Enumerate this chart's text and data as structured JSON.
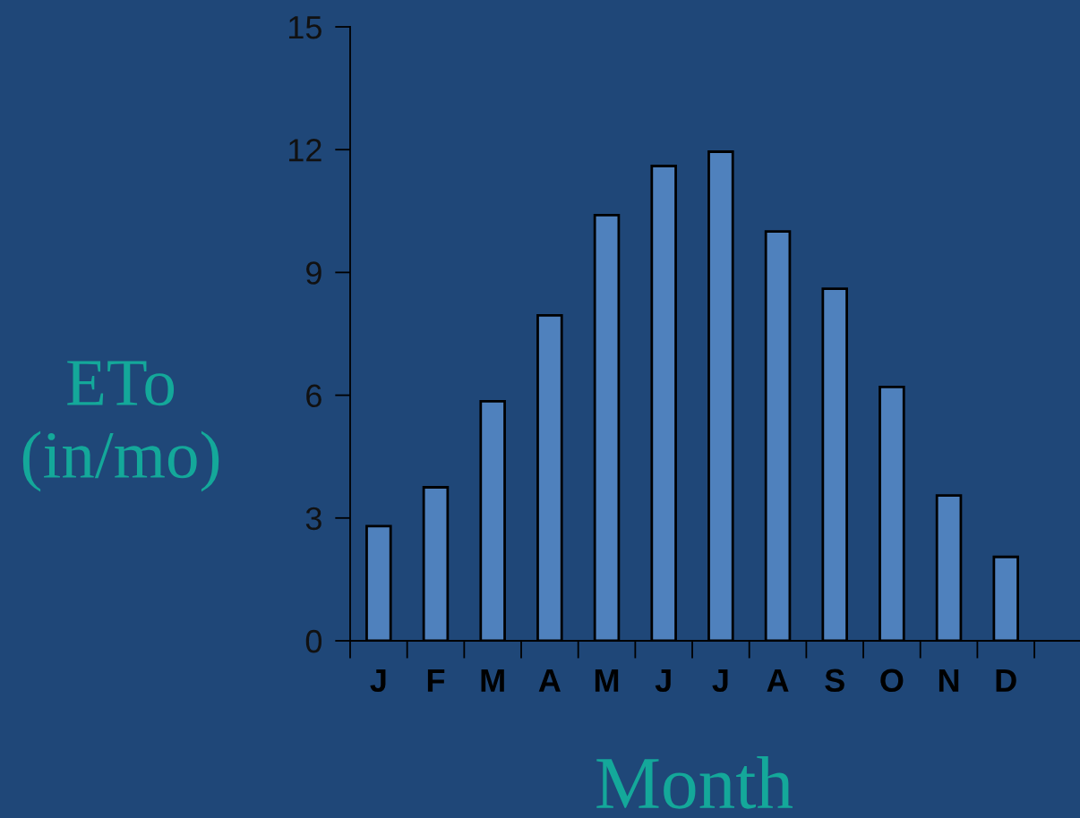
{
  "chart_data": {
    "type": "bar",
    "xlabel": "Month",
    "ylabel": "ETo\n(in/mo)",
    "categories": [
      "J",
      "F",
      "M",
      "A",
      "M",
      "J",
      "J",
      "A",
      "S",
      "O",
      "N",
      "D"
    ],
    "values": [
      2.8,
      3.75,
      5.85,
      7.95,
      10.4,
      11.6,
      11.95,
      10.0,
      8.6,
      6.2,
      3.55,
      2.05
    ],
    "color": "#4f81bd",
    "ylim": [
      0,
      15
    ],
    "yticks": [
      0,
      3,
      6,
      9,
      12,
      15
    ],
    "grid": false
  }
}
